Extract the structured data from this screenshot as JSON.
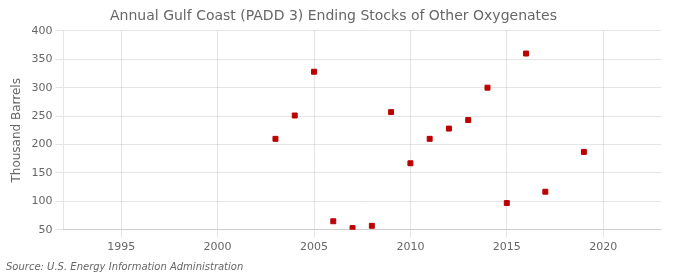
{
  "chart_data": {
    "type": "scatter",
    "title": "Annual Gulf Coast (PADD 3) Ending Stocks of Other Oxygenates",
    "ylabel": "Thousand Barrels",
    "source": "Source: U.S. Energy Information Administration",
    "x": [
      2003,
      2004,
      2005,
      2006,
      2007,
      2008,
      2009,
      2010,
      2011,
      2012,
      2013,
      2014,
      2015,
      2016,
      2017,
      2019
    ],
    "values": [
      210,
      251,
      328,
      65,
      53,
      57,
      257,
      167,
      210,
      228,
      243,
      300,
      97,
      360,
      117,
      187
    ],
    "color": "#bb0000",
    "marker": "square",
    "xlim": [
      1992,
      2023
    ],
    "ylim": [
      50,
      400
    ],
    "xticks": [
      1995,
      2000,
      2005,
      2010,
      2015,
      2020
    ],
    "yticks": [
      50,
      100,
      150,
      200,
      250,
      300,
      350,
      400
    ],
    "grid": true
  }
}
